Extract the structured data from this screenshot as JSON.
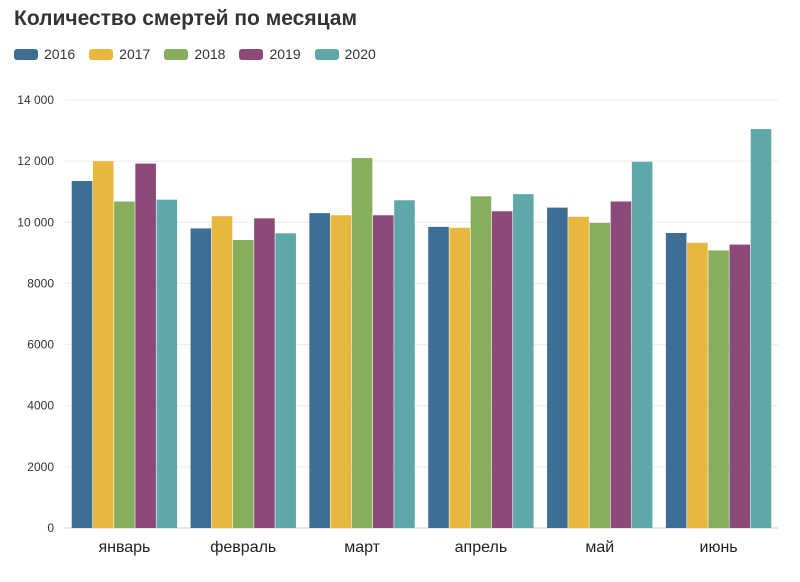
{
  "chart_data": {
    "type": "bar",
    "title": "Количество смертей по месяцам",
    "xlabel": "",
    "ylabel": "",
    "categories": [
      "январь",
      "февраль",
      "март",
      "апрель",
      "май",
      "июнь"
    ],
    "ylim": [
      0,
      14000
    ],
    "yticks": [
      0,
      2000,
      4000,
      6000,
      8000,
      10000,
      12000,
      14000
    ],
    "ytick_labels": [
      "0",
      "2000",
      "4000",
      "6000",
      "8000",
      "10 000",
      "12 000",
      "14 000"
    ],
    "grid": true,
    "legend_position": "top-left",
    "series": [
      {
        "name": "2016",
        "color": "#3f6e94",
        "values": [
          11350,
          9800,
          10300,
          9850,
          10480,
          9650
        ]
      },
      {
        "name": "2017",
        "color": "#e8b83e",
        "values": [
          12000,
          10200,
          10230,
          9820,
          10180,
          9330
        ]
      },
      {
        "name": "2018",
        "color": "#86ae5c",
        "values": [
          10680,
          9420,
          12100,
          10850,
          9980,
          9080
        ]
      },
      {
        "name": "2019",
        "color": "#8c4a79",
        "values": [
          11920,
          10130,
          10230,
          10360,
          10680,
          9270
        ]
      },
      {
        "name": "2020",
        "color": "#5fa8aa",
        "values": [
          10740,
          9640,
          10720,
          10920,
          11980,
          13050
        ]
      }
    ]
  }
}
